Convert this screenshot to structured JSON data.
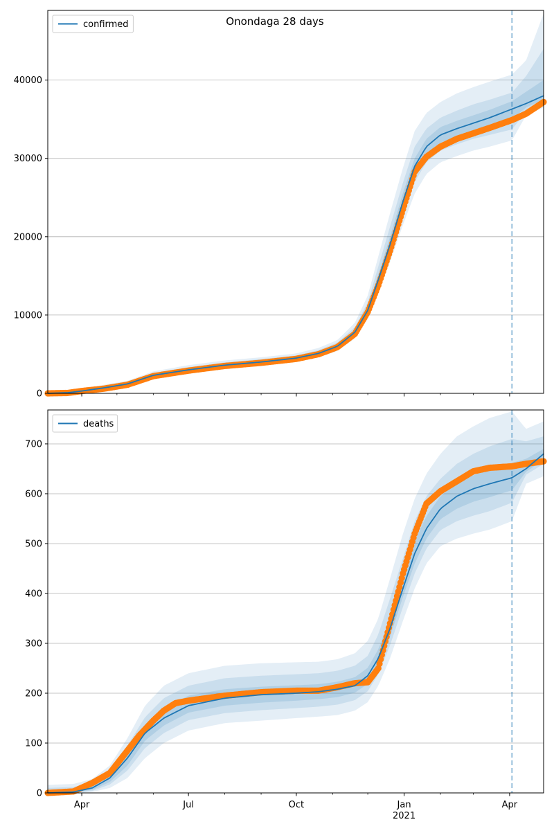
{
  "figure": {
    "title": "Onondaga 28 days"
  },
  "colors": {
    "model": "#1f77b4",
    "observed": "#ff7f0e",
    "band": "#1f77b4",
    "grid": "#b0b0b0",
    "vline": "#1f77b4"
  },
  "chart_data": [
    {
      "type": "line",
      "name": "confirmed",
      "legend": "confirmed",
      "legend_position": "upper-left",
      "grid": "horizontal",
      "xlim": [
        "2020-03-03",
        "2021-04-30"
      ],
      "ylim": [
        0,
        48900
      ],
      "yticks": [
        0,
        10000,
        20000,
        30000,
        40000
      ],
      "xticks": [
        {
          "date": "2020-04-01",
          "label": "Apr"
        },
        {
          "date": "2020-07-01",
          "label": "Jul"
        },
        {
          "date": "2020-10-01",
          "label": "Oct"
        },
        {
          "date": "2021-01-01",
          "label": "Jan",
          "sub": "2021"
        },
        {
          "date": "2021-04-01",
          "label": "Apr"
        }
      ],
      "forecast_date": "2021-04-03",
      "model": {
        "x": [
          "2020-03-03",
          "2020-03-20",
          "2020-04-01",
          "2020-04-20",
          "2020-05-10",
          "2020-06-01",
          "2020-07-01",
          "2020-08-01",
          "2020-09-01",
          "2020-10-01",
          "2020-10-20",
          "2020-11-05",
          "2020-11-20",
          "2020-12-01",
          "2020-12-10",
          "2020-12-20",
          "2020-12-31",
          "2021-01-10",
          "2021-01-20",
          "2021-02-01",
          "2021-02-15",
          "2021-03-01",
          "2021-03-15",
          "2021-04-03",
          "2021-04-15",
          "2021-04-30"
        ],
        "y": [
          0,
          80,
          300,
          700,
          1200,
          2300,
          3000,
          3600,
          4000,
          4500,
          5100,
          6000,
          7800,
          10600,
          14500,
          19000,
          24500,
          29000,
          31500,
          33000,
          33800,
          34500,
          35200,
          36300,
          37000,
          38000
        ]
      },
      "bands": [
        {
          "level": "outer",
          "lower": [
            0,
            0,
            100,
            400,
            900,
            1800,
            2500,
            3100,
            3500,
            4000,
            4600,
            5400,
            7000,
            9500,
            12800,
            16800,
            21500,
            25500,
            28000,
            29500,
            30300,
            31000,
            31500,
            32300,
            35500,
            36500
          ],
          "upper": [
            200,
            250,
            550,
            1100,
            1600,
            2800,
            3600,
            4200,
            4600,
            5100,
            5800,
            6800,
            9000,
            12500,
            17500,
            23000,
            28800,
            33500,
            35800,
            37200,
            38300,
            39100,
            39800,
            40700,
            42500,
            48500
          ]
        },
        {
          "level": "middle",
          "lower": [
            0,
            10,
            170,
            520,
            1020,
            1980,
            2700,
            3300,
            3700,
            4180,
            4780,
            5620,
            7360,
            10000,
            13500,
            17700,
            22700,
            27000,
            29500,
            31000,
            31800,
            32500,
            33000,
            33700,
            36000,
            37000
          ],
          "upper": [
            120,
            160,
            430,
            900,
            1400,
            2600,
            3350,
            3950,
            4380,
            4850,
            5520,
            6480,
            8450,
            11650,
            16200,
            21300,
            26900,
            31500,
            33800,
            35200,
            36100,
            36900,
            37500,
            38400,
            40500,
            44000
          ]
        },
        {
          "level": "inner",
          "lower": [
            0,
            40,
            230,
            620,
            1100,
            2130,
            2850,
            3450,
            3850,
            4330,
            4930,
            5800,
            7560,
            10300,
            14000,
            18300,
            23600,
            28000,
            30500,
            32000,
            32800,
            33500,
            34100,
            35000,
            36500,
            37500
          ],
          "upper": [
            60,
            120,
            370,
            800,
            1300,
            2450,
            3150,
            3750,
            4150,
            4670,
            5280,
            6220,
            8100,
            11000,
            15200,
            20000,
            25600,
            30000,
            32500,
            34000,
            34800,
            35500,
            36200,
            37300,
            38500,
            40000
          ]
        }
      ],
      "observed": {
        "x": [
          "2020-03-03",
          "2020-03-20",
          "2020-04-01",
          "2020-04-20",
          "2020-05-10",
          "2020-06-01",
          "2020-07-01",
          "2020-08-01",
          "2020-09-01",
          "2020-10-01",
          "2020-10-20",
          "2020-11-05",
          "2020-11-20",
          "2020-12-01",
          "2020-12-10",
          "2020-12-20",
          "2020-12-31",
          "2021-01-10",
          "2021-01-20",
          "2021-02-01",
          "2021-02-15",
          "2021-03-01",
          "2021-03-15",
          "2021-04-03",
          "2021-04-15",
          "2021-04-30"
        ],
        "y": [
          0,
          50,
          300,
          600,
          1100,
          2200,
          2900,
          3500,
          3900,
          4400,
          5000,
          5900,
          7600,
          10400,
          13800,
          18200,
          23500,
          28300,
          30200,
          31500,
          32500,
          33200,
          33900,
          34900,
          35700,
          37200
        ]
      }
    },
    {
      "type": "line",
      "name": "deaths",
      "legend": "deaths",
      "legend_position": "upper-left",
      "grid": "horizontal",
      "xlim": [
        "2020-03-03",
        "2021-04-30"
      ],
      "ylim": [
        0,
        768
      ],
      "yticks": [
        0,
        100,
        200,
        300,
        400,
        500,
        600,
        700
      ],
      "xticks": [
        {
          "date": "2020-04-01",
          "label": "Apr"
        },
        {
          "date": "2020-07-01",
          "label": "Jul"
        },
        {
          "date": "2020-10-01",
          "label": "Oct"
        },
        {
          "date": "2021-01-01",
          "label": "Jan",
          "sub": "2021"
        },
        {
          "date": "2021-04-01",
          "label": "Apr"
        }
      ],
      "forecast_date": "2021-04-03",
      "model": {
        "x": [
          "2020-03-03",
          "2020-03-25",
          "2020-04-10",
          "2020-04-25",
          "2020-05-10",
          "2020-05-25",
          "2020-06-10",
          "2020-07-01",
          "2020-08-01",
          "2020-09-01",
          "2020-10-01",
          "2020-10-20",
          "2020-11-05",
          "2020-11-20",
          "2020-12-01",
          "2020-12-10",
          "2020-12-20",
          "2020-12-31",
          "2021-01-10",
          "2021-01-20",
          "2021-02-01",
          "2021-02-15",
          "2021-03-01",
          "2021-03-15",
          "2021-04-03",
          "2021-04-15",
          "2021-04-30"
        ],
        "y": [
          0,
          2,
          10,
          30,
          70,
          120,
          150,
          175,
          190,
          197,
          200,
          203,
          208,
          215,
          235,
          270,
          330,
          410,
          480,
          530,
          570,
          595,
          610,
          620,
          632,
          650,
          680
        ]
      },
      "bands": [
        {
          "level": "outer",
          "lower": [
            0,
            0,
            2,
            10,
            30,
            70,
            100,
            125,
            140,
            145,
            150,
            153,
            156,
            165,
            182,
            215,
            270,
            345,
            410,
            460,
            495,
            510,
            520,
            528,
            545,
            620,
            635
          ],
          "upper": [
            16,
            18,
            28,
            55,
            110,
            175,
            215,
            240,
            255,
            260,
            262,
            263,
            268,
            280,
            305,
            350,
            430,
            520,
            590,
            640,
            680,
            715,
            735,
            752,
            765,
            730,
            745
          ]
        },
        {
          "level": "middle",
          "lower": [
            0,
            0,
            4,
            17,
            45,
            90,
            120,
            146,
            160,
            166,
            170,
            173,
            177,
            186,
            204,
            238,
            296,
            373,
            440,
            490,
            527,
            545,
            556,
            565,
            582,
            638,
            660
          ],
          "upper": [
            10,
            12,
            20,
            45,
            95,
            152,
            190,
            215,
            230,
            235,
            238,
            240,
            245,
            255,
            275,
            318,
            390,
            470,
            545,
            595,
            630,
            660,
            680,
            695,
            710,
            705,
            715
          ]
        },
        {
          "level": "inner",
          "lower": [
            0,
            1,
            6,
            22,
            55,
            105,
            135,
            161,
            175,
            181,
            185,
            188,
            192,
            201,
            219,
            254,
            313,
            393,
            460,
            510,
            549,
            570,
            584,
            593,
            607,
            644,
            668
          ],
          "upper": [
            5,
            7,
            14,
            38,
            85,
            138,
            170,
            195,
            208,
            213,
            216,
            218,
            223,
            232,
            251,
            288,
            350,
            430,
            505,
            555,
            595,
            622,
            637,
            648,
            662,
            670,
            690
          ]
        }
      ],
      "observed": {
        "x": [
          "2020-03-03",
          "2020-03-25",
          "2020-04-10",
          "2020-04-25",
          "2020-05-05",
          "2020-05-20",
          "2020-06-01",
          "2020-06-10",
          "2020-06-20",
          "2020-07-01",
          "2020-08-01",
          "2020-09-01",
          "2020-10-01",
          "2020-10-20",
          "2020-11-05",
          "2020-11-20",
          "2020-12-01",
          "2020-12-10",
          "2020-12-20",
          "2020-12-31",
          "2021-01-10",
          "2021-01-20",
          "2021-02-01",
          "2021-02-15",
          "2021-03-01",
          "2021-03-15",
          "2021-04-03",
          "2021-04-15",
          "2021-04-30"
        ],
        "y": [
          0,
          3,
          20,
          40,
          70,
          115,
          145,
          165,
          180,
          185,
          195,
          202,
          205,
          205,
          212,
          220,
          222,
          250,
          340,
          440,
          520,
          580,
          605,
          625,
          645,
          652,
          655,
          660,
          665
        ]
      }
    }
  ]
}
